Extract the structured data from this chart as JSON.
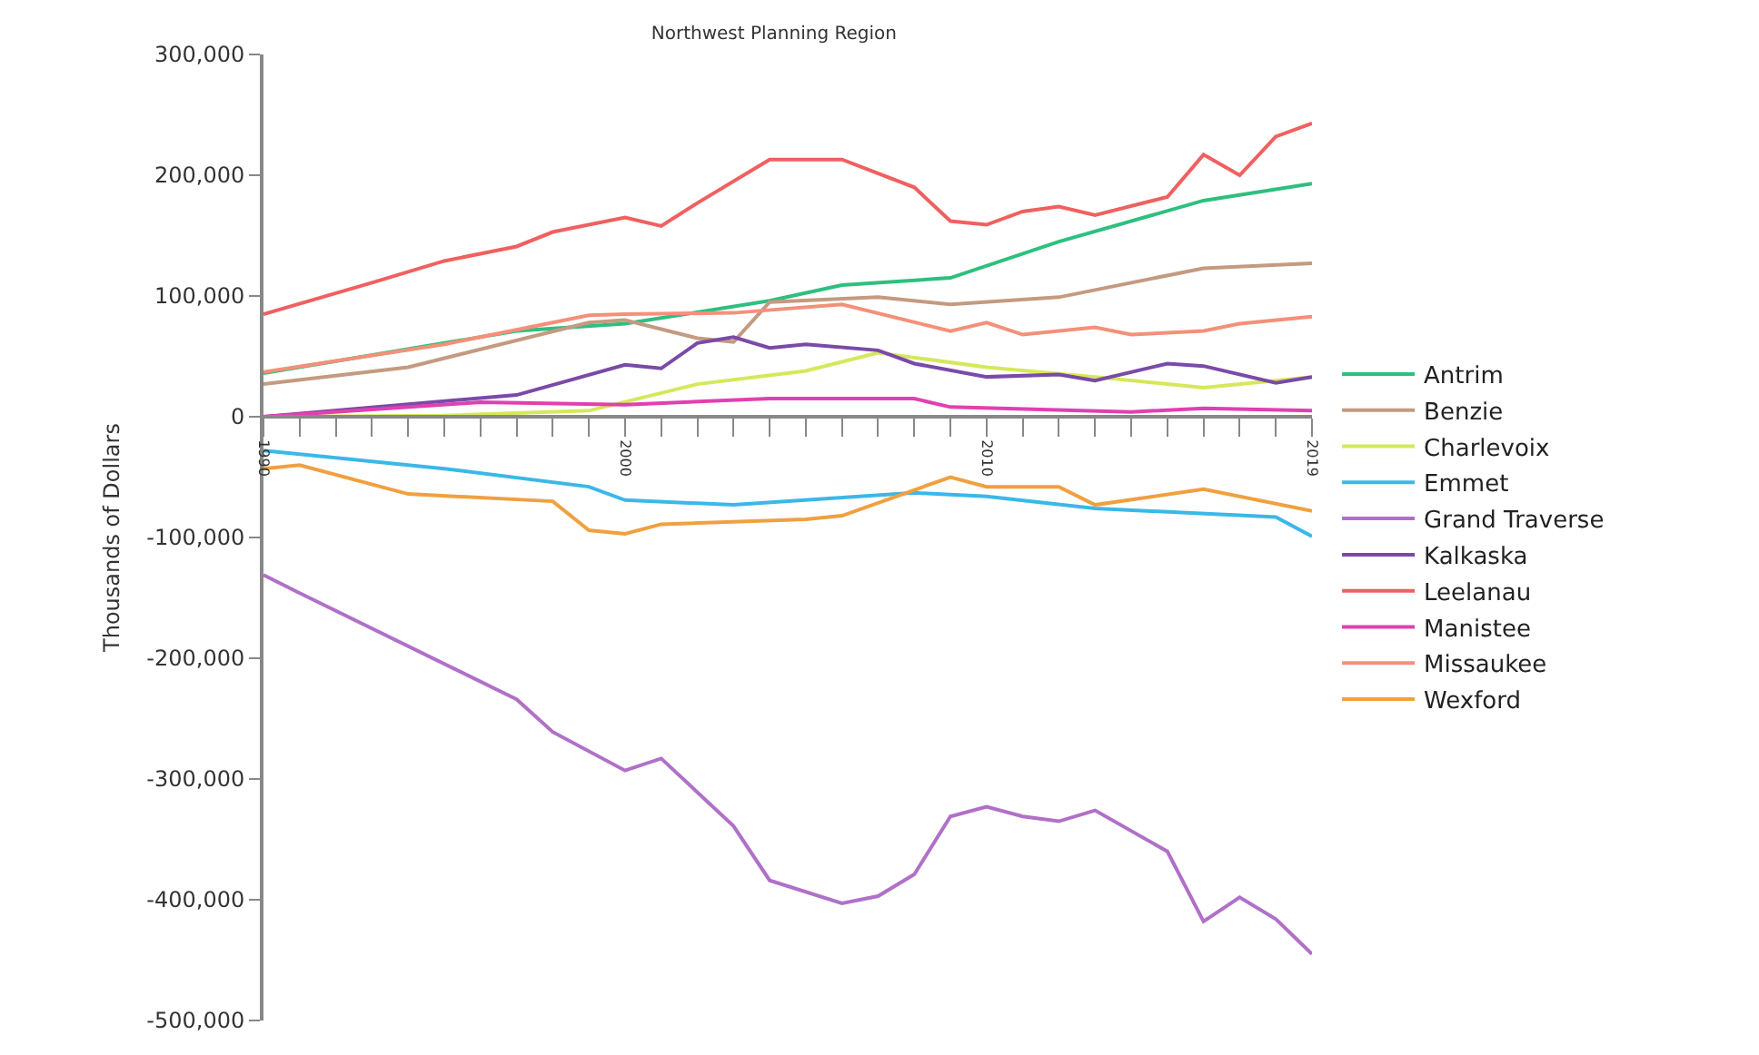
{
  "chart_data": {
    "type": "line",
    "title": "Northwest Planning Region",
    "ylabel": "Thousands of Dollars",
    "xlim": [
      1990,
      2019
    ],
    "xticks": [
      {
        "value": 1990,
        "label": "1990"
      },
      {
        "value": 1991,
        "label": null
      },
      {
        "value": 1992,
        "label": null
      },
      {
        "value": 1993,
        "label": null
      },
      {
        "value": 1994,
        "label": null
      },
      {
        "value": 1995,
        "label": null
      },
      {
        "value": 1996,
        "label": null
      },
      {
        "value": 1997,
        "label": null
      },
      {
        "value": 1998,
        "label": null
      },
      {
        "value": 1999,
        "label": null
      },
      {
        "value": 2000,
        "label": "2000"
      },
      {
        "value": 2001,
        "label": null
      },
      {
        "value": 2002,
        "label": null
      },
      {
        "value": 2003,
        "label": null
      },
      {
        "value": 2004,
        "label": null
      },
      {
        "value": 2005,
        "label": null
      },
      {
        "value": 2006,
        "label": null
      },
      {
        "value": 2007,
        "label": null
      },
      {
        "value": 2008,
        "label": null
      },
      {
        "value": 2009,
        "label": null
      },
      {
        "value": 2010,
        "label": "2010"
      },
      {
        "value": 2011,
        "label": null
      },
      {
        "value": 2012,
        "label": null
      },
      {
        "value": 2013,
        "label": null
      },
      {
        "value": 2014,
        "label": null
      },
      {
        "value": 2015,
        "label": null
      },
      {
        "value": 2016,
        "label": null
      },
      {
        "value": 2017,
        "label": null
      },
      {
        "value": 2018,
        "label": null
      },
      {
        "value": 2019,
        "label": "2019"
      }
    ],
    "ylim": [
      -500000,
      300000
    ],
    "yticks": [
      {
        "value": -500000,
        "label": "-500,000"
      },
      {
        "value": -400000,
        "label": "-400,000"
      },
      {
        "value": -300000,
        "label": "-300,000"
      },
      {
        "value": -200000,
        "label": "-200,000"
      },
      {
        "value": -100000,
        "label": "-100,000"
      },
      {
        "value": 0,
        "label": "0"
      },
      {
        "value": 100000,
        "label": "100,000"
      },
      {
        "value": 200000,
        "label": "200,000"
      },
      {
        "value": 300000,
        "label": "300,000"
      }
    ],
    "legend": "right",
    "marker": "none",
    "line_style": "solid",
    "series": [
      {
        "name": "Antrim",
        "color": "#2ebf7f",
        "x": [
          1990,
          1997,
          2000,
          2004,
          2006,
          2009,
          2012,
          2016,
          2019
        ],
        "values": [
          36000,
          71000,
          77000,
          96000,
          109000,
          115000,
          145000,
          179000,
          193000
        ]
      },
      {
        "name": "Benzie",
        "color": "#c49a80",
        "x": [
          1990,
          1994,
          1999,
          2000,
          2002,
          2003,
          2004,
          2007,
          2009,
          2012,
          2016,
          2019
        ],
        "values": [
          27000,
          41000,
          78000,
          80000,
          65000,
          62000,
          95000,
          99000,
          93000,
          99000,
          123000,
          127000
        ]
      },
      {
        "name": "Charlevoix",
        "color": "#d6e85a",
        "x": [
          1990,
          1995,
          1999,
          2002,
          2005,
          2007,
          2010,
          2013,
          2016,
          2019
        ],
        "values": [
          0,
          1000,
          5000,
          27000,
          38000,
          53000,
          41000,
          33000,
          24000,
          33000
        ]
      },
      {
        "name": "Emmet",
        "color": "#3ab8e8",
        "x": [
          1990,
          1995,
          1999,
          2000,
          2003,
          2008,
          2010,
          2013,
          2018,
          2019
        ],
        "values": [
          -28000,
          -43000,
          -58000,
          -69000,
          -73000,
          -63000,
          -66000,
          -76000,
          -83000,
          -99000
        ]
      },
      {
        "name": "Grand Traverse",
        "color": "#b070c8",
        "x": [
          1990,
          1991,
          1997,
          1998,
          2000,
          2001,
          2003,
          2004,
          2006,
          2007,
          2008,
          2009,
          2010,
          2011,
          2012,
          2013,
          2015,
          2016,
          2017,
          2018,
          2019
        ],
        "values": [
          -131000,
          -146000,
          -234000,
          -261000,
          -293000,
          -283000,
          -339000,
          -384000,
          -403000,
          -397000,
          -379000,
          -331000,
          -323000,
          -331000,
          -335000,
          -326000,
          -360000,
          -418000,
          -398000,
          -416000,
          -445000
        ]
      },
      {
        "name": "Kalkaska",
        "color": "#7a4aa8",
        "x": [
          1990,
          1997,
          2000,
          2001,
          2002,
          2003,
          2004,
          2005,
          2007,
          2008,
          2010,
          2012,
          2013,
          2015,
          2016,
          2018,
          2019
        ],
        "values": [
          0,
          18000,
          43000,
          40000,
          61000,
          66000,
          57000,
          60000,
          55000,
          44000,
          33000,
          35000,
          30000,
          44000,
          42000,
          28000,
          33000
        ]
      },
      {
        "name": "Leelanau",
        "color": "#f06060",
        "x": [
          1990,
          1993,
          1995,
          1997,
          1998,
          2000,
          2001,
          2002,
          2004,
          2006,
          2008,
          2009,
          2010,
          2011,
          2012,
          2013,
          2015,
          2016,
          2017,
          2018,
          2019
        ],
        "values": [
          85000,
          111000,
          129000,
          141000,
          153000,
          165000,
          158000,
          177000,
          213000,
          213000,
          190000,
          162000,
          159000,
          170000,
          174000,
          167000,
          182000,
          217000,
          200000,
          232000,
          243000
        ]
      },
      {
        "name": "Manistee",
        "color": "#e040b0",
        "x": [
          1990,
          1996,
          2000,
          2004,
          2008,
          2009,
          2014,
          2016,
          2019
        ],
        "values": [
          0,
          12000,
          10000,
          15000,
          15000,
          8000,
          4000,
          7000,
          5000
        ]
      },
      {
        "name": "Missaukee",
        "color": "#f4907a",
        "x": [
          1990,
          1995,
          1999,
          2000,
          2003,
          2006,
          2009,
          2010,
          2011,
          2013,
          2014,
          2016,
          2017,
          2019
        ],
        "values": [
          37000,
          60000,
          84000,
          85000,
          86000,
          93000,
          71000,
          78000,
          68000,
          74000,
          68000,
          71000,
          77000,
          83000
        ]
      },
      {
        "name": "Wexford",
        "color": "#f0a040",
        "x": [
          1990,
          1991,
          1994,
          1998,
          1999,
          2000,
          2001,
          2005,
          2006,
          2009,
          2010,
          2012,
          2013,
          2016,
          2019
        ],
        "values": [
          -43000,
          -40000,
          -64000,
          -70000,
          -94000,
          -97000,
          -89000,
          -85000,
          -82000,
          -50000,
          -58000,
          -58000,
          -73000,
          -60000,
          -78000
        ]
      }
    ]
  }
}
